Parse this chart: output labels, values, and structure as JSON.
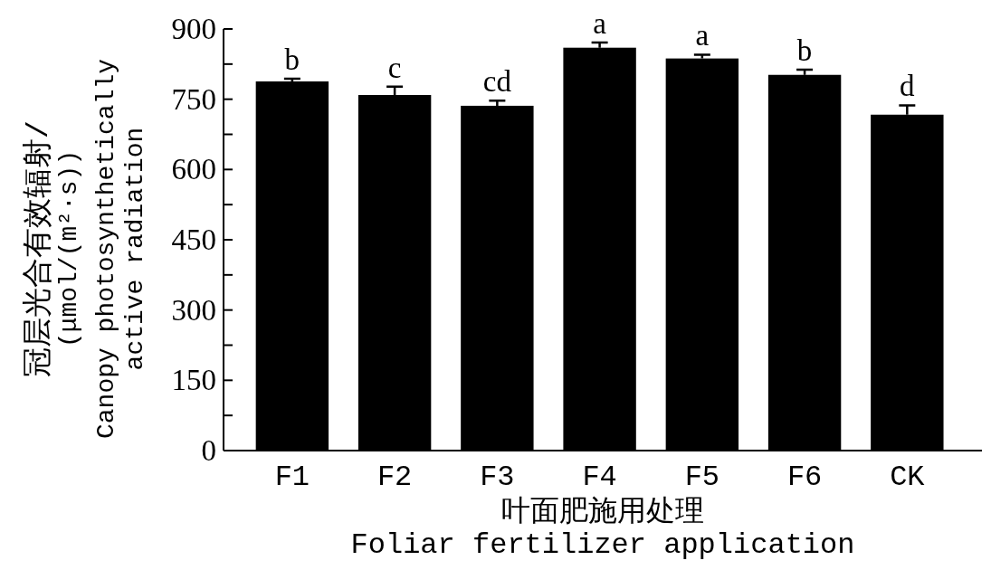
{
  "chart_data": {
    "type": "bar",
    "xlabel": "叶面肥施用处理\nFoliar fertilizer application",
    "ylabel": "冠层光合有效辐射/\n(μmol/(m²·s))\nCanopy photosynthetically\nactive radiation",
    "categories": [
      "F1",
      "F2",
      "F3",
      "F4",
      "F5",
      "F6",
      "CK"
    ],
    "values": [
      788,
      759,
      736,
      860,
      837,
      802,
      717
    ],
    "errors": [
      6,
      18,
      11,
      11,
      8,
      11,
      20
    ],
    "color": "#000000",
    "ylim": [
      0,
      900
    ],
    "yticks": [
      0,
      {
        "value": 75,
        "label": null
      },
      150,
      {
        "value": 225,
        "label": null
      },
      300,
      {
        "value": 375,
        "label": null
      },
      450,
      {
        "value": 525,
        "label": null
      },
      600,
      {
        "value": 675,
        "label": null
      },
      750,
      {
        "value": 825,
        "label": null
      },
      900
    ],
    "annotations": [
      {
        "text": "b",
        "x": "F1",
        "y": 794
      },
      {
        "text": "c",
        "x": "F2",
        "y": 777
      },
      {
        "text": "cd",
        "x": "F3",
        "y": 747
      },
      {
        "text": "a",
        "x": "F4",
        "y": 871
      },
      {
        "text": "a",
        "x": "F5",
        "y": 845
      },
      {
        "text": "b",
        "x": "F6",
        "y": 813
      },
      {
        "text": "d",
        "x": "CK",
        "y": 737
      }
    ],
    "grid": false
  }
}
